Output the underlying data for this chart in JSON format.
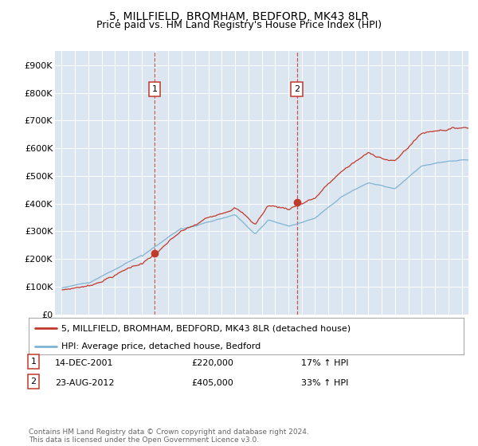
{
  "title": "5, MILLFIELD, BROMHAM, BEDFORD, MK43 8LR",
  "subtitle": "Price paid vs. HM Land Registry's House Price Index (HPI)",
  "background_color": "#ffffff",
  "plot_bg_color": "#dce6f0",
  "legend_red": "5, MILLFIELD, BROMHAM, BEDFORD, MK43 8LR (detached house)",
  "legend_blue": "HPI: Average price, detached house, Bedford",
  "note1_label": "1",
  "note1_date": "14-DEC-2001",
  "note1_price": "£220,000",
  "note1_hpi": "17% ↑ HPI",
  "note2_label": "2",
  "note2_date": "23-AUG-2012",
  "note2_price": "£405,000",
  "note2_hpi": "33% ↑ HPI",
  "footer": "Contains HM Land Registry data © Crown copyright and database right 2024.\nThis data is licensed under the Open Government Licence v3.0.",
  "sale1_x": 2001.96,
  "sale1_y": 220000,
  "sale2_x": 2012.64,
  "sale2_y": 405000,
  "ylim": [
    0,
    950000
  ],
  "xlim": [
    1994.5,
    2025.5
  ],
  "ytick_values": [
    0,
    100000,
    200000,
    300000,
    400000,
    500000,
    600000,
    700000,
    800000,
    900000
  ],
  "ytick_labels": [
    "£0",
    "£100K",
    "£200K",
    "£300K",
    "£400K",
    "£500K",
    "£600K",
    "£700K",
    "£800K",
    "£900K"
  ],
  "red_color": "#c0392b",
  "blue_color": "#7fb3d3",
  "box_edge_color": "#c0392b",
  "grid_color": "#ffffff",
  "title_fontsize": 10,
  "subtitle_fontsize": 9
}
